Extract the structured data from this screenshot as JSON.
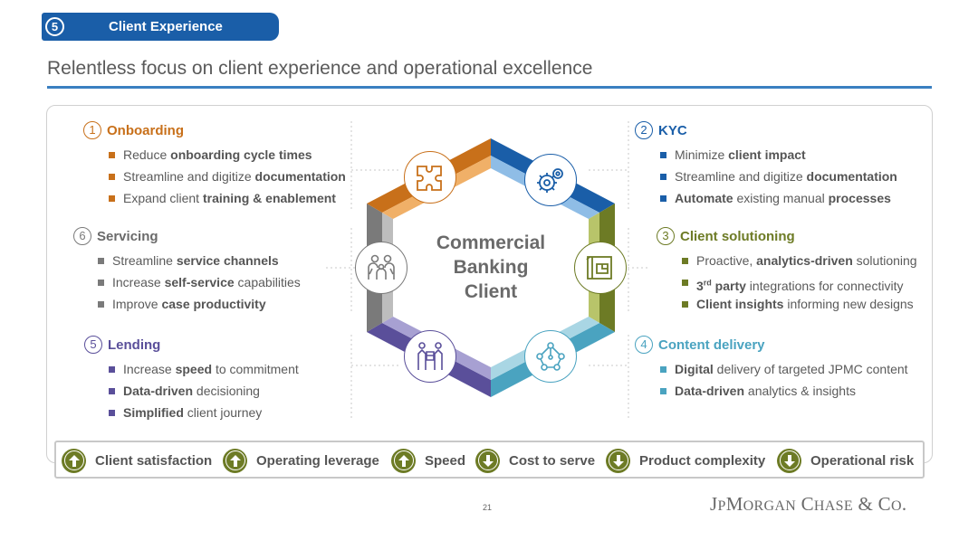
{
  "section": {
    "number": "5",
    "label": "Client Experience"
  },
  "page_title": "Relentless focus on client experience and operational excellence",
  "center_label": [
    "Commercial",
    "Banking",
    "Client"
  ],
  "colors": {
    "onboarding": "#c8701a",
    "kyc": "#1a5ea8",
    "client_solutioning": "#6d7b25",
    "content_delivery": "#4aa3c0",
    "lending": "#5a4f9a",
    "servicing": "#7a7a7a",
    "metric_arrow": "#6d7b25",
    "title_rule": "#3a7fc1"
  },
  "features": {
    "onboarding": {
      "number": "1",
      "title": "Onboarding",
      "items": [
        {
          "pre": "Reduce ",
          "bold": "onboarding cycle times",
          "post": ""
        },
        {
          "pre": "Streamline and digitize ",
          "bold": "documentation",
          "post": ""
        },
        {
          "pre": "Expand client ",
          "bold": "training & enablement",
          "post": ""
        }
      ]
    },
    "kyc": {
      "number": "2",
      "title": "KYC",
      "items": [
        {
          "pre": "Minimize ",
          "bold": "client impact",
          "post": ""
        },
        {
          "pre": "Streamline and digitize ",
          "bold": "documentation",
          "post": ""
        },
        {
          "pre": "",
          "bold": "Automate",
          "mid": " existing manual ",
          "bold2": "processes"
        }
      ]
    },
    "servicing": {
      "number": "6",
      "title": "Servicing",
      "items": [
        {
          "pre": "Streamline ",
          "bold": "service channels",
          "post": ""
        },
        {
          "pre": "Increase ",
          "bold": "self-service",
          "post": " capabilities"
        },
        {
          "pre": "Improve ",
          "bold": "case productivity",
          "post": ""
        }
      ]
    },
    "client_solutioning": {
      "number": "3",
      "title": "Client solutioning",
      "items": [
        {
          "pre": "Proactive, ",
          "bold": "analytics-driven",
          "post": " solutioning"
        },
        {
          "pre": "",
          "bold": "3",
          "sup": "rd",
          "bold2": " party",
          "post": " integrations for connectivity"
        },
        {
          "pre": "",
          "bold": "Client insights",
          "post": " informing new designs"
        }
      ]
    },
    "lending": {
      "number": "5",
      "title": "Lending",
      "items": [
        {
          "pre": "Increase ",
          "bold": "speed",
          "post": " to commitment"
        },
        {
          "pre": "",
          "bold": "Data-driven",
          "post": " decisioning"
        },
        {
          "pre": "",
          "bold": "Simplified",
          "post": " client journey"
        }
      ]
    },
    "content_delivery": {
      "number": "4",
      "title": "Content delivery",
      "items": [
        {
          "pre": "",
          "bold": "Digital",
          "post": " delivery of targeted JPMC content"
        },
        {
          "pre": "",
          "bold": "Data-driven",
          "post": " analytics & insights"
        }
      ]
    }
  },
  "metrics": [
    {
      "label": "Client satisfaction",
      "direction": "up"
    },
    {
      "label": "Operating leverage",
      "direction": "up"
    },
    {
      "label": "Speed",
      "direction": "up"
    },
    {
      "label": "Cost to serve",
      "direction": "down"
    },
    {
      "label": "Product complexity",
      "direction": "down"
    },
    {
      "label": "Operational risk",
      "direction": "down"
    }
  ],
  "icons": {
    "onboarding": "puzzle-icon",
    "kyc": "gears-icon",
    "client_solutioning": "blueprint-icon",
    "content_delivery": "network-icon",
    "lending": "handshake-icon",
    "servicing": "people-icon"
  },
  "page_number": "21",
  "logo": {
    "text": "JPMorgan Chase & Co."
  }
}
